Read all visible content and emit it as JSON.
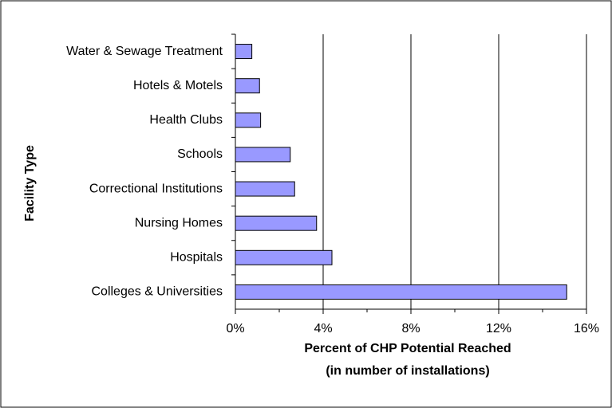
{
  "chart_data": {
    "type": "bar",
    "orientation": "horizontal",
    "categories": [
      "Water & Sewage Treatment",
      "Hotels & Motels",
      "Health Clubs",
      "Schools",
      "Correctional Institutions",
      "Nursing Homes",
      "Hospitals",
      "Colleges & Universities"
    ],
    "values": [
      0.75,
      1.1,
      1.15,
      2.5,
      2.7,
      3.7,
      4.4,
      15.1
    ],
    "color": "#9999ff",
    "xlabel": [
      "Percent of CHP Potential Reached",
      "(in number of installations)"
    ],
    "ylabel": "Facility Type",
    "xlim": [
      0,
      16
    ],
    "xticks": [
      {
        "value": 0,
        "label": "0%"
      },
      {
        "value": 4,
        "label": "4%"
      },
      {
        "value": 8,
        "label": "8%"
      },
      {
        "value": 12,
        "label": "12%"
      },
      {
        "value": 16,
        "label": "16%"
      }
    ],
    "grid": true
  }
}
